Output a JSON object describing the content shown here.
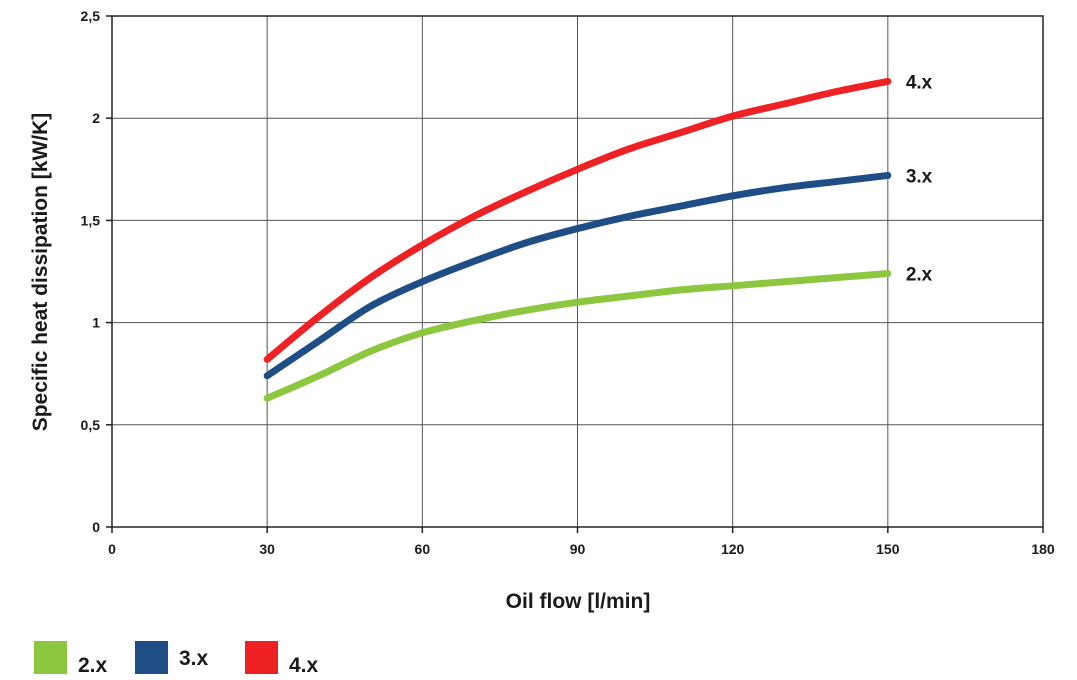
{
  "chart_data": {
    "type": "line",
    "title": "",
    "xlabel": "Oil flow [l/min]",
    "ylabel": "Specific heat dissipation [kW/K]",
    "xlim": [
      0,
      180
    ],
    "ylim": [
      0,
      2.5
    ],
    "x_ticks": [
      0,
      30,
      60,
      90,
      120,
      150,
      180
    ],
    "x_tick_labels": [
      "0",
      "30",
      "60",
      "90",
      "120",
      "150",
      "180"
    ],
    "y_ticks": [
      0,
      0.5,
      1,
      1.5,
      2,
      2.5
    ],
    "y_tick_labels": [
      "0",
      "0,5",
      "1",
      "1,5",
      "2",
      "2,5"
    ],
    "grid": true,
    "legend_position": "bottom-left",
    "series": [
      {
        "name": "2.x",
        "color": "#8dc63f",
        "x": [
          30,
          40,
          50,
          60,
          70,
          80,
          90,
          100,
          110,
          120,
          130,
          140,
          150
        ],
        "y": [
          0.63,
          0.74,
          0.86,
          0.95,
          1.01,
          1.06,
          1.1,
          1.13,
          1.16,
          1.18,
          1.2,
          1.22,
          1.24
        ]
      },
      {
        "name": "3.x",
        "color": "#1f4e87",
        "x": [
          30,
          40,
          50,
          60,
          70,
          80,
          90,
          100,
          110,
          120,
          130,
          140,
          150
        ],
        "y": [
          0.74,
          0.91,
          1.08,
          1.2,
          1.3,
          1.39,
          1.46,
          1.52,
          1.57,
          1.62,
          1.66,
          1.69,
          1.72
        ]
      },
      {
        "name": "4.x",
        "color": "#ee2124",
        "x": [
          30,
          40,
          50,
          60,
          70,
          80,
          90,
          100,
          110,
          120,
          130,
          140,
          150
        ],
        "y": [
          0.82,
          1.03,
          1.22,
          1.38,
          1.52,
          1.64,
          1.75,
          1.85,
          1.93,
          2.01,
          2.07,
          2.13,
          2.18
        ]
      }
    ]
  }
}
